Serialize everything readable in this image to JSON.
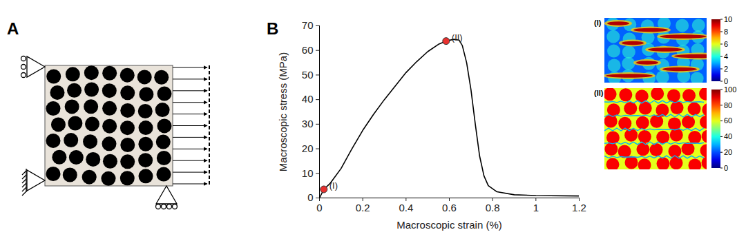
{
  "panel_labels": [
    "A",
    "B"
  ],
  "chart_data": {
    "type": "line",
    "xlabel": "Macroscopic strain (%)",
    "ylabel": "Macroscopic stress (MPa)",
    "x": [
      0,
      0.02,
      0.05,
      0.1,
      0.15,
      0.2,
      0.25,
      0.3,
      0.35,
      0.4,
      0.45,
      0.5,
      0.55,
      0.585,
      0.62,
      0.645,
      0.66,
      0.68,
      0.7,
      0.72,
      0.74,
      0.76,
      0.78,
      0.82,
      0.9,
      1.0,
      1.2
    ],
    "values": [
      0,
      3.5,
      6,
      12,
      20,
      27.5,
      34,
      40,
      45.5,
      51,
      55.5,
      59.5,
      62.5,
      63.8,
      64.5,
      64.2,
      62,
      55,
      44,
      30,
      17,
      9,
      5,
      2.5,
      1.3,
      1,
      0.8
    ],
    "color": "#000000",
    "xlim": [
      0,
      1.2
    ],
    "xticks": [
      0,
      0.2,
      0.4,
      0.6,
      0.8,
      1,
      1.2
    ],
    "ylim": [
      0,
      70
    ],
    "yticks": [
      0,
      10,
      20,
      30,
      40,
      50,
      60,
      70
    ],
    "grid": false,
    "annotations": [
      {
        "x": 0.02,
        "y": 3.5,
        "label": "(I)",
        "color": "#e8312f",
        "marker": "circle"
      },
      {
        "x": 0.585,
        "y": 63.8,
        "label": "(II)",
        "color": "#e8312f",
        "marker": "circle"
      }
    ]
  },
  "field_maps": [
    {
      "label": "(I)",
      "colorbar_range": [
        0,
        10
      ],
      "colorbar_ticks": [
        0,
        2,
        4,
        6,
        8,
        10
      ]
    },
    {
      "label": "(II)",
      "colorbar_range": [
        0,
        100
      ],
      "colorbar_ticks": [
        0,
        20,
        40,
        60,
        80,
        100
      ]
    }
  ]
}
